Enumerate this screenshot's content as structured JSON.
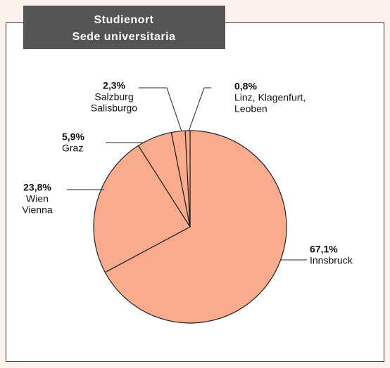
{
  "chart_data": {
    "type": "pie",
    "title": "Studienort",
    "subtitle": "Sede universitaria",
    "categories": [
      [
        "Innsbruck"
      ],
      [
        "Wien",
        "Vienna"
      ],
      [
        "Graz"
      ],
      [
        "Salzburg",
        "Salisburgo"
      ],
      [
        "Linz, Klagenfurt,",
        "Leoben"
      ]
    ],
    "values": [
      67.1,
      23.8,
      5.9,
      2.3,
      0.8
    ],
    "value_labels": [
      "67,1%",
      "23,8%",
      "5,9%",
      "2,3%",
      "0,8%"
    ],
    "color": "#f8ab8d"
  }
}
